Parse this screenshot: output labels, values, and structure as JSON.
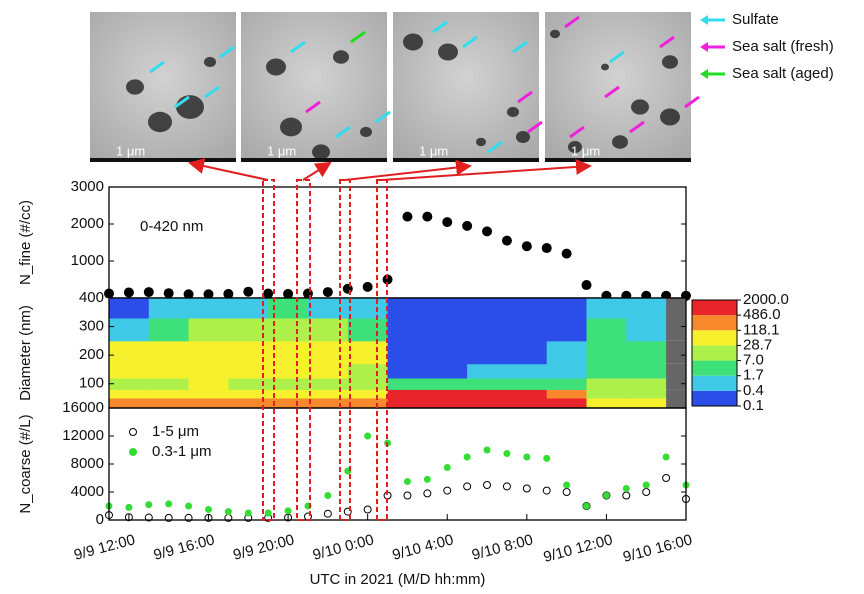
{
  "images": [
    {
      "scale_label": "1 μm"
    },
    {
      "scale_label": "1 μm"
    },
    {
      "scale_label": "1 μm"
    },
    {
      "scale_label": "1 μm"
    }
  ],
  "particle_legend": [
    {
      "label": "Sulfate",
      "color": "#33ddee"
    },
    {
      "label": "Sea salt (fresh)",
      "color": "#ee22dd"
    },
    {
      "label": "Sea salt (aged)",
      "color": "#22dd22"
    }
  ],
  "chart_data": [
    {
      "type": "scatter",
      "y_label": "N_fine (#/cc)",
      "annotation": "0-420 nm",
      "x": [
        11,
        12,
        13,
        14,
        15,
        16,
        17,
        18,
        19,
        20,
        21,
        22,
        23,
        24,
        25,
        26,
        27,
        28,
        29,
        30,
        31,
        32,
        33,
        34,
        35,
        36,
        37,
        38,
        39,
        40
      ],
      "values": [
        120,
        150,
        160,
        130,
        100,
        100,
        110,
        170,
        120,
        110,
        120,
        160,
        250,
        300,
        500,
        2200,
        2200,
        2050,
        1950,
        1800,
        1550,
        1400,
        1350,
        1200,
        350,
        60,
        60,
        60,
        60,
        60
      ],
      "color": "#000000",
      "xlim": [
        11,
        40
      ],
      "ylim": [
        0,
        3000
      ],
      "yticks": [
        1000,
        2000,
        3000
      ]
    },
    {
      "type": "heatmap",
      "y_label": "Diameter (nm)",
      "x_edges": [
        11,
        13,
        15,
        17,
        19,
        21,
        23,
        25,
        27,
        29,
        31,
        33,
        35,
        37,
        39,
        40
      ],
      "y_edges": [
        15,
        50,
        80,
        120,
        170,
        250,
        330,
        400
      ],
      "z": [
        [
          150,
          150,
          200,
          200,
          200,
          200,
          150,
          600,
          900,
          900,
          800,
          600,
          40,
          30,
          null
        ],
        [
          60,
          60,
          80,
          60,
          60,
          60,
          50,
          600,
          800,
          700,
          600,
          300,
          20,
          15,
          null
        ],
        [
          10,
          20,
          30,
          20,
          20,
          20,
          10,
          3,
          5,
          5,
          4,
          3,
          10,
          8,
          null
        ],
        [
          50,
          60,
          60,
          40,
          50,
          50,
          20,
          0.3,
          0.3,
          1,
          0.5,
          0.5,
          5,
          3,
          null
        ],
        [
          60,
          50,
          60,
          50,
          60,
          60,
          30,
          0.2,
          0.2,
          0.3,
          0.3,
          0.5,
          3,
          2,
          null
        ],
        [
          1,
          3,
          10,
          10,
          20,
          20,
          5,
          0.2,
          0.2,
          0.2,
          0.2,
          0.3,
          2,
          1,
          null
        ],
        [
          0.3,
          0.5,
          0.5,
          1,
          2,
          1,
          0.5,
          0.2,
          0.2,
          0.2,
          0.2,
          0.3,
          1,
          0.5,
          null
        ]
      ],
      "missing_color": "#666666",
      "xlim": [
        11,
        40
      ],
      "ylim": [
        15,
        400
      ],
      "yticks": [
        100,
        200,
        300,
        400
      ],
      "colorbar": {
        "levels": [
          {
            "value": 0.1,
            "label": "0.1"
          },
          0.4,
          1.7,
          {
            "value": 7,
            "label": "7.0"
          },
          28.7,
          118.1,
          {
            "value": 486,
            "label": "486.0"
          },
          {
            "value": 2000,
            "label": "2000.0"
          }
        ],
        "colors": [
          "#2c4ee8",
          "#3fc9e6",
          "#3ee07a",
          "#aef04a",
          "#f6f02d",
          "#f7892c",
          "#e8252a"
        ]
      }
    },
    {
      "type": "scatter",
      "y_label": "N_coarse (#/L)",
      "x_label": "UTC in 2021 (M/D hh:mm)",
      "x": [
        11,
        12,
        13,
        14,
        15,
        16,
        17,
        18,
        19,
        20,
        21,
        22,
        23,
        24,
        25,
        26,
        27,
        28,
        29,
        30,
        31,
        32,
        33,
        34,
        35,
        36,
        37,
        38,
        39,
        40
      ],
      "series": [
        {
          "name": "1-5  μm",
          "color": "#000000",
          "hollow": true,
          "values": [
            700,
            400,
            350,
            300,
            300,
            300,
            300,
            300,
            300,
            350,
            500,
            900,
            1200,
            1500,
            3500,
            3500,
            3800,
            4200,
            4800,
            5000,
            4800,
            4500,
            4200,
            4000,
            2000,
            3500,
            3500,
            4000,
            6000,
            3000
          ]
        },
        {
          "name": "0.3-1  μm",
          "color": "#33dd33",
          "hollow": false,
          "values": [
            2000,
            1800,
            2200,
            2300,
            2000,
            1500,
            1200,
            1000,
            1000,
            1300,
            2000,
            3500,
            7000,
            12000,
            11000,
            5500,
            5800,
            7500,
            9000,
            10000,
            9500,
            9000,
            8800,
            5000,
            2000,
            3500,
            4500,
            5000,
            9000,
            5000
          ]
        }
      ],
      "xlim": [
        11,
        40
      ],
      "ylim": [
        0,
        16000
      ],
      "yticks": [
        0,
        4000,
        8000,
        12000,
        16000
      ],
      "xticks": [
        {
          "value": 12,
          "label": "9/9 12:00"
        },
        {
          "value": 16,
          "label": "9/9 16:00"
        },
        {
          "value": 20,
          "label": "9/9 20:00"
        },
        {
          "value": 24,
          "label": "9/10 0:00"
        },
        {
          "value": 28,
          "label": "9/10 4:00"
        },
        {
          "value": 32,
          "label": "9/10 8:00"
        },
        {
          "value": 36,
          "label": "9/10 12:00"
        },
        {
          "value": 40,
          "label": "9/10 16:00"
        }
      ]
    }
  ]
}
